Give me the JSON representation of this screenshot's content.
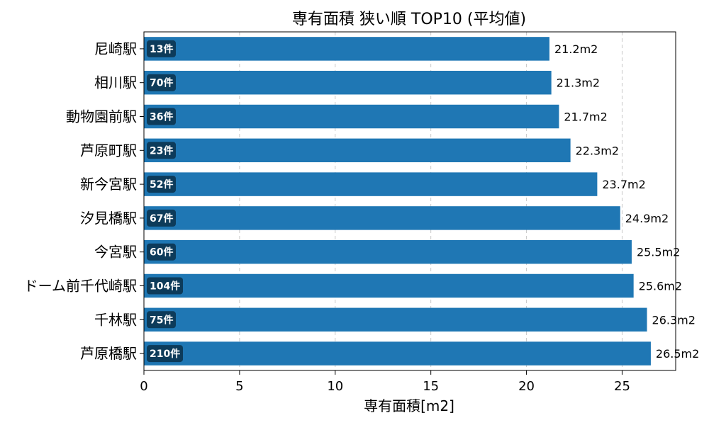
{
  "chart_data": {
    "type": "bar",
    "orientation": "horizontal",
    "title": "専有面積 狭い順 TOP10 (平均値)",
    "xlabel": "専有面積[m2]",
    "ylabel": "",
    "xlim": [
      0,
      27.8
    ],
    "xticks": [
      0,
      5,
      10,
      15,
      20,
      25
    ],
    "grid": "x-dashed",
    "categories": [
      "尼崎駅",
      "相川駅",
      "動物園前駅",
      "芦原町駅",
      "新今宮駅",
      "汐見橋駅",
      "今宮駅",
      "ドーム前千代崎駅",
      "千林駅",
      "芦原橋駅"
    ],
    "values": [
      21.2,
      21.3,
      21.7,
      22.3,
      23.7,
      24.9,
      25.5,
      25.6,
      26.3,
      26.5
    ],
    "value_labels": [
      "21.2m2",
      "21.3m2",
      "21.7m2",
      "22.3m2",
      "23.7m2",
      "24.9m2",
      "25.5m2",
      "25.6m2",
      "26.3m2",
      "26.5m2"
    ],
    "counts": [
      "13件",
      "70件",
      "36件",
      "23件",
      "52件",
      "67件",
      "60件",
      "104件",
      "75件",
      "210件"
    ],
    "colors": {
      "bar": "#1f77b4",
      "count_badge": "#0d3b5a"
    }
  }
}
